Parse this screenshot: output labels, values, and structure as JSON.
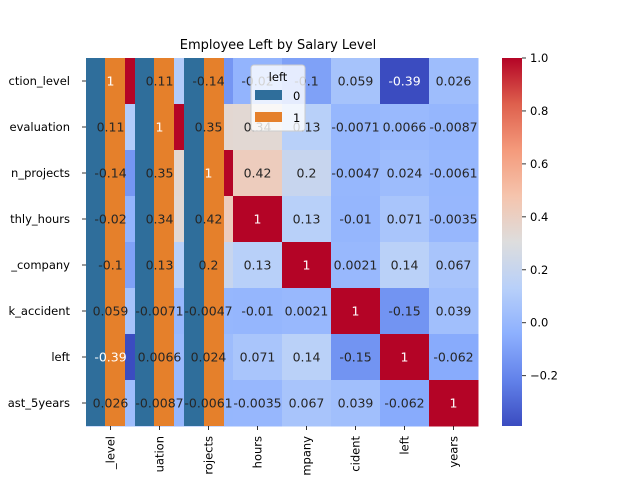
{
  "chart_data": [
    {
      "type": "heatmap",
      "title": "Employee Left by Salary Level",
      "row_tick_labels": [
        "ction_level",
        "evaluation",
        "n_projects",
        "thly_hours",
        "_company",
        "k_accident",
        "left",
        "ast_5years"
      ],
      "col_tick_labels": [
        "_level",
        "uation",
        "rojects",
        "hours",
        "mpany",
        "cident",
        "left",
        "years"
      ],
      "values": [
        [
          1,
          0.11,
          -0.14,
          -0.02,
          -0.1,
          0.059,
          -0.39,
          0.026
        ],
        [
          0.11,
          1,
          0.35,
          0.34,
          0.13,
          -0.0071,
          0.0066,
          -0.0087
        ],
        [
          -0.14,
          0.35,
          1,
          0.42,
          0.2,
          -0.0047,
          0.024,
          -0.0061
        ],
        [
          -0.02,
          0.34,
          0.42,
          1,
          0.13,
          -0.01,
          0.071,
          -0.0035
        ],
        [
          -0.1,
          0.13,
          0.2,
          0.13,
          1,
          0.0021,
          0.14,
          0.067
        ],
        [
          0.059,
          -0.0071,
          -0.0047,
          -0.01,
          0.0021,
          1,
          -0.15,
          0.039
        ],
        [
          -0.39,
          0.0066,
          0.024,
          0.071,
          0.14,
          -0.15,
          1,
          -0.062
        ],
        [
          0.026,
          -0.0087,
          -0.0061,
          -0.0035,
          0.067,
          0.039,
          -0.062,
          1
        ]
      ],
      "annotation_labels": [
        [
          "1",
          "0.11",
          "-0.14",
          "-0.02",
          "-0.1",
          "0.059",
          "-0.39",
          "0.026"
        ],
        [
          "0.11",
          "1",
          "0.35",
          "0.34",
          "0.13",
          "-0.0071",
          "0.0066",
          "-0.0087"
        ],
        [
          "-0.14",
          "0.35",
          "1",
          "0.42",
          "0.2",
          "-0.0047",
          "0.024",
          "-0.0061"
        ],
        [
          "-0.02",
          "0.34",
          "0.42",
          "1",
          "0.13",
          "-0.01",
          "0.071",
          "-0.0035"
        ],
        [
          "-0.1",
          "0.13",
          "0.2",
          "0.13",
          "1",
          "0.0021",
          "0.14",
          "0.067"
        ],
        [
          "0.059",
          "-0.0071",
          "-0.0047",
          "-0.01",
          "0.0021",
          "1",
          "-0.15",
          "0.039"
        ],
        [
          "-0.39",
          "0.0066",
          "0.024",
          "0.071",
          "0.14",
          "-0.15",
          "1",
          "-0.062"
        ],
        [
          "0.026",
          "-0.0087",
          "-0.0061",
          "-0.0035",
          "0.067",
          "0.039",
          "-0.062",
          "1"
        ]
      ],
      "colormap": "coolwarm",
      "value_range": [
        -0.39,
        1
      ],
      "colorbar": {
        "ticks": [
          1.0,
          0.8,
          0.6,
          0.4,
          0.2,
          0.0,
          -0.2
        ],
        "tick_labels": [
          "1.0",
          "0.8",
          "0.6",
          "0.4",
          "0.2",
          "0.0",
          "−0.2"
        ]
      }
    },
    {
      "type": "bar",
      "overlay": true,
      "legend_title": "left",
      "legend_position": "upper-center",
      "series": [
        {
          "name": "0",
          "color": "#2f6e9b"
        },
        {
          "name": "1",
          "color": "#e5802b"
        }
      ]
    }
  ]
}
